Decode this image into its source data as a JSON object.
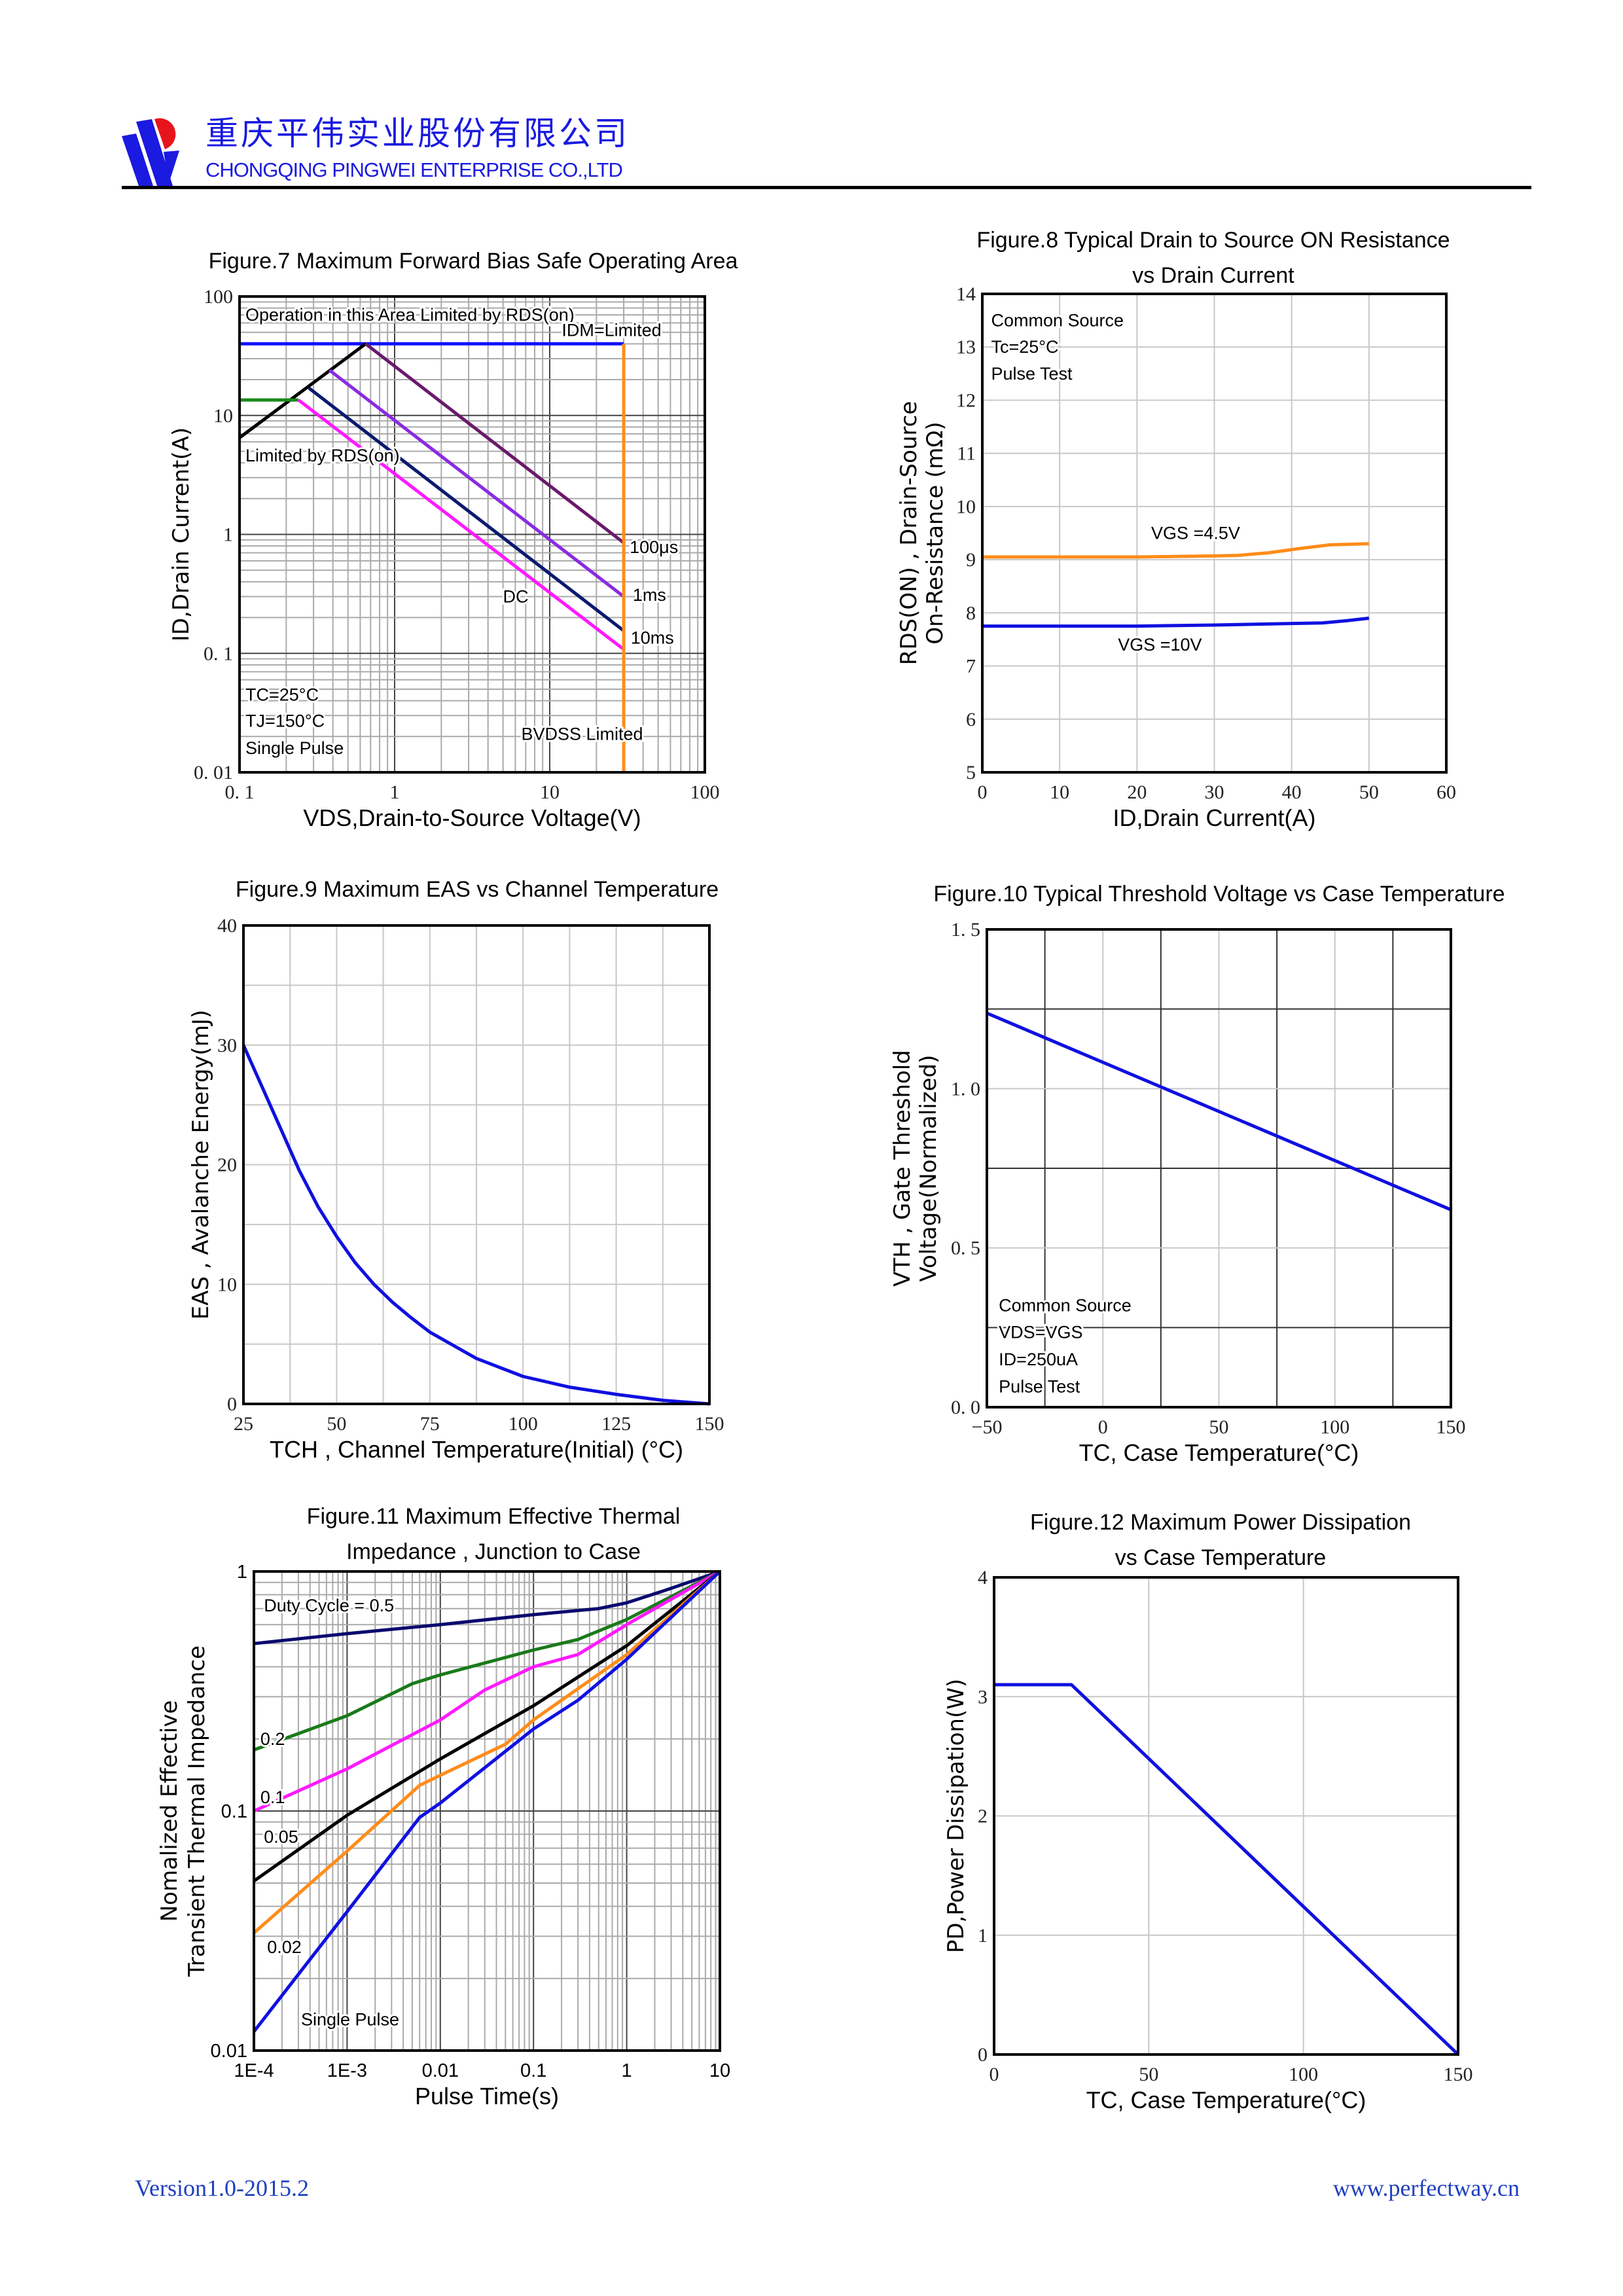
{
  "header": {
    "company_cn": "重庆平伟实业股份有限公司",
    "company_en": "CHONGQING PINGWEI ENTERPRISE CO.,LTD",
    "logo_colors": {
      "blue": "#1a1ae0",
      "red": "#e8141c"
    }
  },
  "footer": {
    "version": "Version1.0-2015.2",
    "website": "www.perfectway.cn"
  },
  "chart_data": [
    {
      "type": "line",
      "title": [
        "Figure.7 Maximum Forward Bias Safe Operating Area"
      ],
      "xlabel": "VDS,Drain-to-Source Voltage(V)",
      "ylabel": [
        "ID,Drain Current(A)"
      ],
      "xscale": "log",
      "yscale": "log",
      "xlim": [
        0.1,
        100
      ],
      "ylim": [
        0.01,
        100
      ],
      "xticks": [
        0.1,
        1,
        10,
        100
      ],
      "xtick_labels": [
        "0. 1",
        "1",
        "10",
        "100"
      ],
      "yticks": [
        0.01,
        0.1,
        1,
        10,
        100
      ],
      "ytick_labels": [
        "0. 01",
        "0. 1",
        "1",
        "10",
        "100"
      ],
      "grid": true,
      "series": [
        {
          "color": "#1010ff",
          "points": [
            [
              0.1,
              40
            ],
            [
              30,
              40
            ]
          ]
        },
        {
          "color": "#000000",
          "points": [
            [
              0.1,
              6.5
            ],
            [
              0.65,
              40
            ]
          ]
        },
        {
          "color": "#1a8a1a",
          "points": [
            [
              0.1,
              13.5
            ],
            [
              0.24,
              13.5
            ]
          ]
        },
        {
          "name": "100μs",
          "color": "#6a1a6a",
          "points": [
            [
              0.65,
              40
            ],
            [
              30,
              0.85
            ]
          ]
        },
        {
          "name": "1ms",
          "color": "#8a2be2",
          "points": [
            [
              0.38,
              24
            ],
            [
              30,
              0.3
            ]
          ]
        },
        {
          "name": "10ms",
          "color": "#0a1a6e",
          "points": [
            [
              0.28,
              17
            ],
            [
              30,
              0.155
            ]
          ]
        },
        {
          "name": "DC",
          "color": "#ff1aff",
          "points": [
            [
              0.24,
              13.5
            ],
            [
              30,
              0.108
            ]
          ]
        },
        {
          "color": "#ff8c1a",
          "points": [
            [
              30,
              0.01
            ],
            [
              30,
              40
            ]
          ]
        }
      ],
      "annotations": [
        {
          "text": "Operation in this Area Limited by RDS(on)",
          "x": 0.105,
          "y": 70
        },
        {
          "text": "IDM=Limited",
          "x": 11.5,
          "y": 52
        },
        {
          "text": "Limited by RDS(on)",
          "x": 0.105,
          "y": 4.6
        },
        {
          "text": "100μs",
          "x": 31.5,
          "y": 0.78
        },
        {
          "text": "1ms",
          "x": 33,
          "y": 0.31
        },
        {
          "text": "10ms",
          "x": 32,
          "y": 0.135
        },
        {
          "text": "DC",
          "x": 4.8,
          "y": 0.3
        },
        {
          "text": "TC=25°C",
          "x": 0.105,
          "y": 0.045
        },
        {
          "text": "TJ=150°C",
          "x": 0.105,
          "y": 0.027
        },
        {
          "text": "Single Pulse",
          "x": 0.105,
          "y": 0.016
        },
        {
          "text": "BVDSS Limited",
          "x": 6.3,
          "y": 0.021
        }
      ]
    },
    {
      "type": "line",
      "title": [
        "Figure.8 Typical Drain to Source ON Resistance",
        "vs Drain Current"
      ],
      "xlabel": "ID,Drain Current(A)",
      "ylabel": [
        "RDS(ON) , Drain-Source",
        "On-Resistance (mΩ)"
      ],
      "xscale": "linear",
      "yscale": "linear",
      "xlim": [
        0,
        60
      ],
      "ylim": [
        5,
        14
      ],
      "xticks": [
        0,
        10,
        20,
        30,
        40,
        50,
        60
      ],
      "xtick_labels": [
        "0",
        "10",
        "20",
        "30",
        "40",
        "50",
        "60"
      ],
      "yticks": [
        5,
        6,
        7,
        8,
        9,
        10,
        11,
        12,
        13,
        14
      ],
      "ytick_labels": [
        "5",
        "6",
        "7",
        "8",
        "9",
        "10",
        "11",
        "12",
        "13",
        "14"
      ],
      "grid": true,
      "series": [
        {
          "name": "VGS =4.5V",
          "color": "#ff8c1a",
          "points": [
            [
              0,
              9.05
            ],
            [
              10,
              9.05
            ],
            [
              20,
              9.05
            ],
            [
              30,
              9.07
            ],
            [
              33,
              9.08
            ],
            [
              37,
              9.13
            ],
            [
              41,
              9.21
            ],
            [
              45,
              9.28
            ],
            [
              50,
              9.3
            ]
          ]
        },
        {
          "name": "VGS =10V",
          "color": "#1010e0",
          "points": [
            [
              0,
              7.75
            ],
            [
              10,
              7.75
            ],
            [
              20,
              7.75
            ],
            [
              30,
              7.77
            ],
            [
              40,
              7.8
            ],
            [
              44,
              7.81
            ],
            [
              47,
              7.85
            ],
            [
              50,
              7.9
            ]
          ]
        }
      ],
      "annotations": [
        {
          "text": "Common Source",
          "x": 0.8,
          "y": 13.5
        },
        {
          "text": "Tc=25°C",
          "x": 0.8,
          "y": 13.0
        },
        {
          "text": "Pulse Test",
          "x": 0.8,
          "y": 12.5
        },
        {
          "text": "VGS =4.5V",
          "x": 21.5,
          "y": 9.5
        },
        {
          "text": "VGS =10V",
          "x": 17.2,
          "y": 7.4
        }
      ]
    },
    {
      "type": "line",
      "title": [
        "Figure.9 Maximum EAS vs Channel Temperature"
      ],
      "xlabel": "TCH , Channel Temperature(Initial) (°C)",
      "ylabel": [
        "EAS , Avalanche Energy(mJ)"
      ],
      "xscale": "linear",
      "yscale": "linear",
      "xlim": [
        25,
        150
      ],
      "ylim": [
        0,
        40
      ],
      "xticks": [
        25,
        50,
        75,
        100,
        125,
        150
      ],
      "xtick_labels": [
        "25",
        "50",
        "75",
        "100",
        "125",
        "150"
      ],
      "yticks": [
        0,
        10,
        20,
        30,
        40
      ],
      "ytick_labels": [
        "0",
        "10",
        "20",
        "30",
        "40"
      ],
      "grid": true,
      "series": [
        {
          "color": "#1010e0",
          "points": [
            [
              25,
              30
            ],
            [
              30,
              26.5
            ],
            [
              35,
              23
            ],
            [
              40,
              19.5
            ],
            [
              45,
              16.5
            ],
            [
              50,
              14
            ],
            [
              55,
              11.8
            ],
            [
              60,
              10
            ],
            [
              65,
              8.5
            ],
            [
              70,
              7.2
            ],
            [
              75,
              6
            ],
            [
              87.5,
              3.8
            ],
            [
              100,
              2.3
            ],
            [
              112.5,
              1.4
            ],
            [
              125,
              0.8
            ],
            [
              137.5,
              0.3
            ],
            [
              150,
              0
            ]
          ]
        }
      ],
      "annotations": []
    },
    {
      "type": "line",
      "title": [
        "Figure.10 Typical Threshold Voltage vs Case Temperature"
      ],
      "xlabel": "TC, Case Temperature(°C)",
      "ylabel": [
        "VTH , Gate Threshold",
        "Voltage(Normalized)"
      ],
      "xscale": "linear",
      "yscale": "linear",
      "xlim": [
        -50,
        150
      ],
      "ylim": [
        0,
        1.5
      ],
      "xticks": [
        -50,
        0,
        50,
        100,
        150
      ],
      "xtick_labels": [
        "−50",
        "0",
        "50",
        "100",
        "150"
      ],
      "yticks": [
        0,
        0.5,
        1.0,
        1.5
      ],
      "ytick_labels": [
        "0. 0",
        "0. 5",
        "1. 0",
        "1. 5"
      ],
      "grid": true,
      "series": [
        {
          "color": "#1010e0",
          "points": [
            [
              -50,
              1.237
            ],
            [
              150,
              0.62
            ]
          ]
        }
      ],
      "annotations": [
        {
          "text": "Common Source",
          "x": -46,
          "y": 0.32
        },
        {
          "text": "VDS=VGS",
          "x": -46,
          "y": 0.235
        },
        {
          "text": "ID=250uA",
          "x": -46,
          "y": 0.15
        },
        {
          "text": "Pulse Test",
          "x": -46,
          "y": 0.065
        }
      ]
    },
    {
      "type": "line",
      "title": [
        "Figure.11 Maximum Effective Thermal",
        "Impedance , Junction to Case"
      ],
      "xlabel": "Pulse Time(s)",
      "ylabel": [
        "Nomalized Effective",
        "Transient Thermal Impedance"
      ],
      "xscale": "log",
      "yscale": "log",
      "xlim": [
        0.0001,
        10
      ],
      "ylim": [
        0.01,
        1
      ],
      "xticks": [
        0.0001,
        0.001,
        0.01,
        0.1,
        1,
        10
      ],
      "xtick_labels": [
        "1E-4",
        "1E-3",
        "0.01",
        "0.1",
        "1",
        "10"
      ],
      "yticks": [
        0.01,
        0.1,
        1
      ],
      "ytick_labels": [
        "0.01",
        "0.1",
        "1"
      ],
      "grid": true,
      "series": [
        {
          "name": "Duty Cycle = 0.5",
          "color": "#0a0a6e",
          "points": [
            [
              0.0001,
              0.5
            ],
            [
              0.001,
              0.55
            ],
            [
              0.01,
              0.6
            ],
            [
              0.1,
              0.66
            ],
            [
              0.5,
              0.7
            ],
            [
              1,
              0.74
            ],
            [
              3,
              0.85
            ],
            [
              10,
              1
            ]
          ]
        },
        {
          "name": "0.2",
          "color": "#1a7a1a",
          "points": [
            [
              0.0001,
              0.18
            ],
            [
              0.001,
              0.25
            ],
            [
              0.005,
              0.34
            ],
            [
              0.01,
              0.37
            ],
            [
              0.1,
              0.47
            ],
            [
              0.3,
              0.52
            ],
            [
              1,
              0.63
            ],
            [
              10,
              1
            ]
          ]
        },
        {
          "name": "0.1",
          "color": "#ff1aff",
          "points": [
            [
              0.0001,
              0.1
            ],
            [
              0.001,
              0.15
            ],
            [
              0.01,
              0.24
            ],
            [
              0.03,
              0.32
            ],
            [
              0.1,
              0.4
            ],
            [
              0.3,
              0.45
            ],
            [
              1,
              0.6
            ],
            [
              10,
              1
            ]
          ]
        },
        {
          "name": "0.05",
          "color": "#000000",
          "points": [
            [
              0.0001,
              0.051
            ],
            [
              0.001,
              0.096
            ],
            [
              0.01,
              0.165
            ],
            [
              0.1,
              0.275
            ],
            [
              1,
              0.49
            ],
            [
              10,
              1
            ]
          ]
        },
        {
          "name": "0.02",
          "color": "#ff8c1a",
          "points": [
            [
              0.0001,
              0.031
            ],
            [
              0.001,
              0.068
            ],
            [
              0.006,
              0.128
            ],
            [
              0.01,
              0.141
            ],
            [
              0.05,
              0.19
            ],
            [
              0.1,
              0.24
            ],
            [
              1,
              0.45
            ],
            [
              10,
              1
            ]
          ]
        },
        {
          "name": "Single Pulse",
          "color": "#1010e0",
          "points": [
            [
              0.0001,
              0.012
            ],
            [
              0.001,
              0.038
            ],
            [
              0.006,
              0.094
            ],
            [
              0.01,
              0.108
            ],
            [
              0.1,
              0.22
            ],
            [
              0.3,
              0.29
            ],
            [
              1,
              0.43
            ],
            [
              10,
              1
            ]
          ]
        }
      ],
      "annotations": [
        {
          "text": "Duty Cycle = 0.5",
          "x": 0.00012,
          "y": 0.72
        },
        {
          "text": "0.2",
          "x": 0.00011,
          "y": 0.2
        },
        {
          "text": "0.1",
          "x": 0.00011,
          "y": 0.114
        },
        {
          "text": "0.05",
          "x": 0.00012,
          "y": 0.078
        },
        {
          "text": "0.02",
          "x": 0.00013,
          "y": 0.027
        },
        {
          "text": "Single Pulse",
          "x": 0.0003,
          "y": 0.0135
        }
      ]
    },
    {
      "type": "line",
      "title": [
        "Figure.12 Maximum Power Dissipation",
        "vs Case Temperature"
      ],
      "xlabel": "TC, Case Temperature(°C)",
      "ylabel": [
        "PD,Power Dissipation(W)"
      ],
      "xscale": "linear",
      "yscale": "linear",
      "xlim": [
        0,
        150
      ],
      "ylim": [
        0,
        4
      ],
      "xticks": [
        0,
        50,
        100,
        150
      ],
      "xtick_labels": [
        "0",
        "50",
        "100",
        "150"
      ],
      "yticks": [
        0,
        1,
        2,
        3,
        4
      ],
      "ytick_labels": [
        "0",
        "1",
        "2",
        "3",
        "4"
      ],
      "grid": true,
      "series": [
        {
          "color": "#1010e0",
          "points": [
            [
              0,
              3.1
            ],
            [
              25,
              3.1
            ],
            [
              150,
              0
            ]
          ]
        }
      ],
      "annotations": []
    }
  ]
}
